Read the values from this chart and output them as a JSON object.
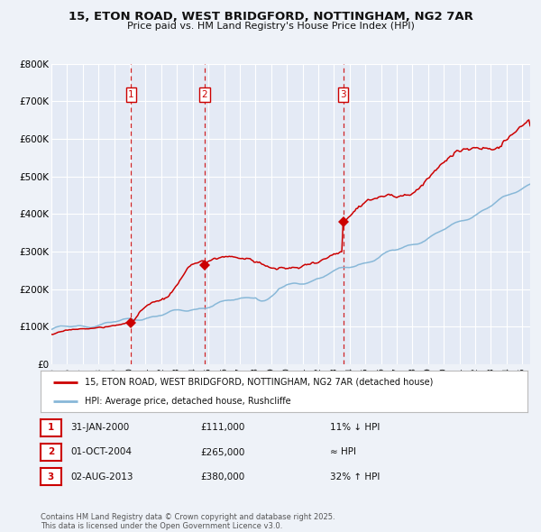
{
  "title": "15, ETON ROAD, WEST BRIDGFORD, NOTTINGHAM, NG2 7AR",
  "subtitle": "Price paid vs. HM Land Registry's House Price Index (HPI)",
  "ylim": [
    0,
    800000
  ],
  "yticks": [
    0,
    100000,
    200000,
    300000,
    400000,
    500000,
    600000,
    700000,
    800000
  ],
  "ytick_labels": [
    "£0",
    "£100K",
    "£200K",
    "£300K",
    "£400K",
    "£500K",
    "£600K",
    "£700K",
    "£800K"
  ],
  "xlim_start": 1995.0,
  "xlim_end": 2025.5,
  "background_color": "#eef2f8",
  "plot_bg_color": "#e4eaf5",
  "grid_color": "#ffffff",
  "red_line_color": "#cc0000",
  "blue_line_color": "#88b8d8",
  "vline_color": "#cc0000",
  "sale_points": [
    {
      "year": 2000.083,
      "price": 111000,
      "label": "1"
    },
    {
      "year": 2004.75,
      "price": 265000,
      "label": "2"
    },
    {
      "year": 2013.583,
      "price": 380000,
      "label": "3"
    }
  ],
  "vline_years": [
    2000.083,
    2004.75,
    2013.583
  ],
  "legend_red_label": "15, ETON ROAD, WEST BRIDGFORD, NOTTINGHAM, NG2 7AR (detached house)",
  "legend_blue_label": "HPI: Average price, detached house, Rushcliffe",
  "table_rows": [
    {
      "num": "1",
      "date": "31-JAN-2000",
      "price": "£111,000",
      "hpi": "11% ↓ HPI"
    },
    {
      "num": "2",
      "date": "01-OCT-2004",
      "price": "£265,000",
      "hpi": "≈ HPI"
    },
    {
      "num": "3",
      "date": "02-AUG-2013",
      "price": "£380,000",
      "hpi": "32% ↑ HPI"
    }
  ],
  "footer": "Contains HM Land Registry data © Crown copyright and database right 2025.\nThis data is licensed under the Open Government Licence v3.0."
}
